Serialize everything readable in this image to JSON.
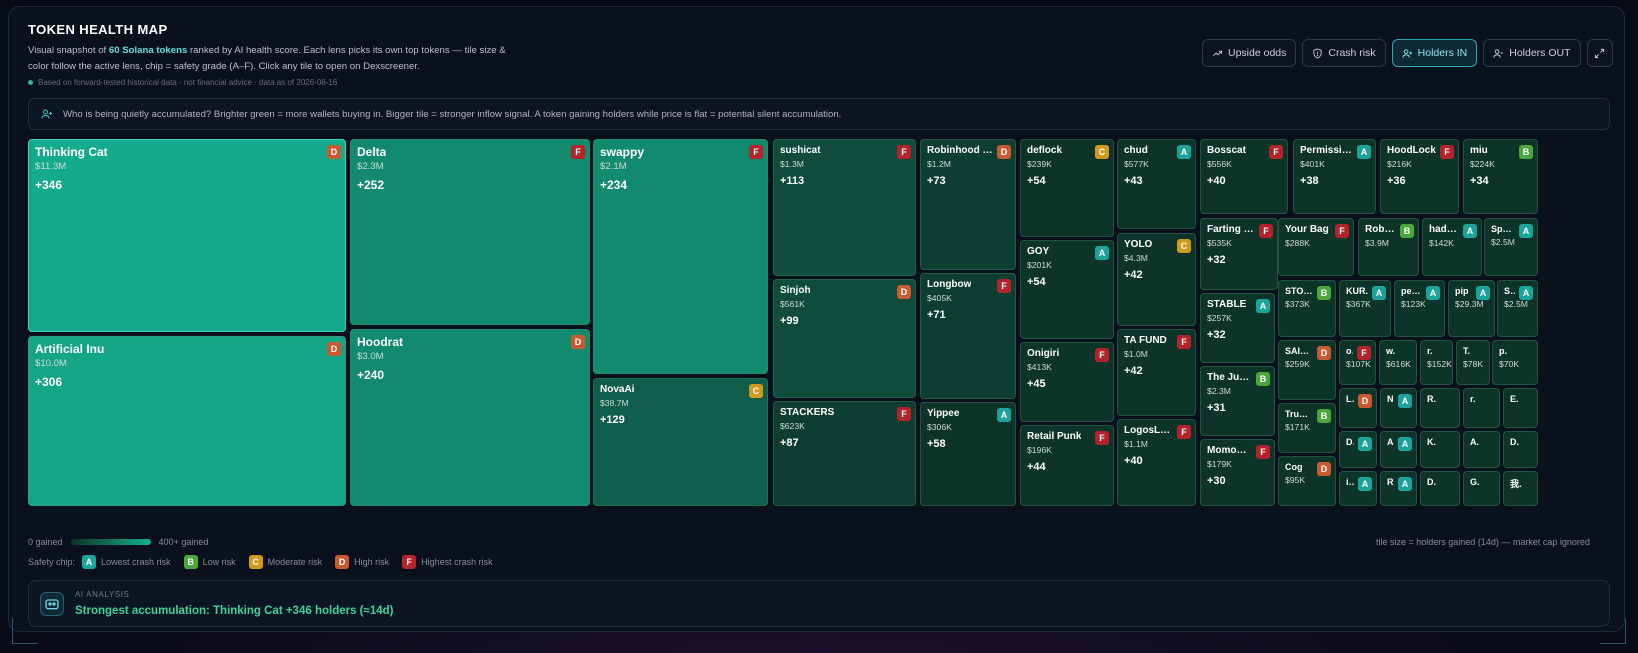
{
  "header": {
    "title": "TOKEN HEALTH MAP",
    "desc_pre": "Visual snapshot of ",
    "desc_hl": "60 Solana tokens",
    "desc_post": " ranked by AI health score. Each lens picks its own top tokens — tile size & color follow the active lens, chip = safety grade (A–F). Click any tile to open on Dexscreener.",
    "note": "Based on forward-tested historical data · not financial advice · data as of 2026-08-16"
  },
  "lenses": [
    {
      "label": "Upside odds",
      "icon": "trending-up-icon",
      "active": false
    },
    {
      "label": "Crash risk",
      "icon": "shield-icon",
      "active": false
    },
    {
      "label": "Holders IN",
      "icon": "user-plus-icon",
      "active": true
    },
    {
      "label": "Holders OUT",
      "icon": "user-minus-icon",
      "active": false
    }
  ],
  "expand_icon": "expand-icon",
  "info_text": "Who is being quietly accumulated? Brighter green = more wallets buying in. Bigger tile = stronger inflow signal. A token gaining holders while price is flat = potential silent accumulation.",
  "grade_colors": {
    "A": "#1aa49c",
    "B": "#4aa83a",
    "C": "#d29a1c",
    "D": "#c95a30",
    "F": "#b4232a"
  },
  "tiles": [
    {
      "name": "Thinking Cat",
      "mcap": "$11.3M",
      "gain": "+346",
      "grade": "D"
    },
    {
      "name": "Artificial Inu",
      "mcap": "$10.0M",
      "gain": "+306",
      "grade": "D"
    },
    {
      "name": "Delta",
      "mcap": "$2.3M",
      "gain": "+252",
      "grade": "F"
    },
    {
      "name": "Hoodrat",
      "mcap": "$3.0M",
      "gain": "+240",
      "grade": "D"
    },
    {
      "name": "swappy",
      "mcap": "$2.1M",
      "gain": "+234",
      "grade": "F"
    },
    {
      "name": "NovaAi",
      "mcap": "$38.7M",
      "gain": "+129",
      "grade": "C"
    },
    {
      "name": "sushicat",
      "mcap": "$1.3M",
      "gain": "+113",
      "grade": "F"
    },
    {
      "name": "Sinjoh",
      "mcap": "$561K",
      "gain": "+99",
      "grade": "D"
    },
    {
      "name": "STACKERS",
      "mcap": "$623K",
      "gain": "+87",
      "grade": "F"
    },
    {
      "name": "Robinhood Dog",
      "mcap": "$1.2M",
      "gain": "+73",
      "grade": "D"
    },
    {
      "name": "Longbow",
      "mcap": "$405K",
      "gain": "+71",
      "grade": "F"
    },
    {
      "name": "Yippee",
      "mcap": "$306K",
      "gain": "+58",
      "grade": "A"
    },
    {
      "name": "deflock",
      "mcap": "$239K",
      "gain": "+54",
      "grade": "C"
    },
    {
      "name": "GOY",
      "mcap": "$201K",
      "gain": "+54",
      "grade": "A"
    },
    {
      "name": "Onigiri",
      "mcap": "$413K",
      "gain": "+45",
      "grade": "F"
    },
    {
      "name": "Retail Punk",
      "mcap": "$196K",
      "gain": "+44",
      "grade": "F"
    },
    {
      "name": "chud",
      "mcap": "$577K",
      "gain": "+43",
      "grade": "A"
    },
    {
      "name": "YOLO",
      "mcap": "$4.3M",
      "gain": "+42",
      "grade": "C"
    },
    {
      "name": "TA FUND",
      "mcap": "$1.0M",
      "gain": "+42",
      "grade": "F"
    },
    {
      "name": "LogosLayer",
      "mcap": "$1.1M",
      "gain": "+40",
      "grade": "F"
    },
    {
      "name": "Bosscat",
      "mcap": "$556K",
      "gain": "+40",
      "grade": "F"
    },
    {
      "name": "Permission-L",
      "mcap": "$401K",
      "gain": "+38",
      "grade": "A"
    },
    {
      "name": "HoodLock",
      "mcap": "$216K",
      "gain": "+36",
      "grade": "F"
    },
    {
      "name": "miu",
      "mcap": "$224K",
      "gain": "+34",
      "grade": "B"
    },
    {
      "name": "Farting Un.",
      "mcap": "$535K",
      "gain": "+32",
      "grade": "F"
    },
    {
      "name": "STABLE",
      "mcap": "$257K",
      "gain": "+32",
      "grade": "A"
    },
    {
      "name": "The Jugge.",
      "mcap": "$2.3M",
      "gain": "+31",
      "grade": "B"
    },
    {
      "name": "MomoCoin",
      "mcap": "$179K",
      "gain": "+30",
      "grade": "F"
    },
    {
      "name": "Your Bag",
      "mcap": "$288K",
      "gain": "",
      "grade": "F"
    },
    {
      "name": "Robinh.",
      "mcap": "$3.9M",
      "gain": "",
      "grade": "B"
    },
    {
      "name": "had to.",
      "mcap": "$142K",
      "gain": "",
      "grade": "A"
    },
    {
      "name": "Space.",
      "mcap": "$2.5M",
      "gain": "",
      "grade": "A"
    },
    {
      "name": "STONK",
      "mcap": "$373K",
      "gain": "",
      "grade": "B"
    },
    {
      "name": "KUR.",
      "mcap": "$367K",
      "gain": "",
      "grade": "A"
    },
    {
      "name": "pepe.",
      "mcap": "$123K",
      "gain": "",
      "grade": "A"
    },
    {
      "name": "pip",
      "mcap": "$29.3M",
      "gain": "",
      "grade": "A"
    },
    {
      "name": "SP.",
      "mcap": "$2.5M",
      "gain": "",
      "grade": "A"
    },
    {
      "name": "SAITA.",
      "mcap": "$259K",
      "gain": "",
      "grade": "D"
    },
    {
      "name": "Trump.",
      "mcap": "$171K",
      "gain": "",
      "grade": "B"
    },
    {
      "name": "Cog",
      "mcap": "$95K",
      "gain": "",
      "grade": "D"
    },
    {
      "name": "omo",
      "mcap": "$107K",
      "gain": "",
      "grade": "F"
    },
    {
      "name": "w.",
      "mcap": "$616K",
      "gain": "",
      "grade": ""
    },
    {
      "name": "r.",
      "mcap": "$152K",
      "gain": "",
      "grade": ""
    },
    {
      "name": "T.",
      "mcap": "$78K",
      "gain": "",
      "grade": ""
    },
    {
      "name": "p.",
      "mcap": "$70K",
      "gain": "",
      "grade": ""
    },
    {
      "name": "Loon",
      "mcap": "",
      "gain": "",
      "grade": "D"
    },
    {
      "name": "N.",
      "mcap": "",
      "gain": "",
      "grade": "A"
    },
    {
      "name": "R.",
      "mcap": "",
      "gain": "",
      "grade": ""
    },
    {
      "name": "r.",
      "mcap": "",
      "gain": "",
      "grade": ""
    },
    {
      "name": "E.",
      "mcap": "",
      "gain": "",
      "grade": ""
    },
    {
      "name": "Dog",
      "mcap": "",
      "gain": "",
      "grade": "A"
    },
    {
      "name": "A.",
      "mcap": "",
      "gain": "",
      "grade": "A"
    },
    {
      "name": "K.",
      "mcap": "",
      "gain": "",
      "grade": ""
    },
    {
      "name": "A.",
      "mcap": "",
      "gain": "",
      "grade": ""
    },
    {
      "name": "D.",
      "mcap": "",
      "gain": "",
      "grade": ""
    },
    {
      "name": "idra.",
      "mcap": "",
      "gain": "",
      "grade": "A"
    },
    {
      "name": "R.",
      "mcap": "",
      "gain": "",
      "grade": "A"
    },
    {
      "name": "D.",
      "mcap": "",
      "gain": "",
      "grade": ""
    },
    {
      "name": "G.",
      "mcap": "",
      "gain": "",
      "grade": ""
    },
    {
      "name": "我.",
      "mcap": "",
      "gain": "",
      "grade": ""
    }
  ],
  "legend": {
    "min": "0 gained",
    "max": "400+ gained",
    "size_note": "tile size = holders gained (14d) — market cap ignored"
  },
  "safety": {
    "label": "Safety chip:",
    "items": [
      {
        "grade": "A",
        "label": "Lowest crash risk"
      },
      {
        "grade": "B",
        "label": "Low risk"
      },
      {
        "grade": "C",
        "label": "Moderate risk"
      },
      {
        "grade": "D",
        "label": "High risk"
      },
      {
        "grade": "F",
        "label": "Highest crash risk"
      }
    ]
  },
  "ai": {
    "label": "AI ANALYSIS",
    "text": "Strongest accumulation: Thinking Cat +346 holders (≈14d)"
  }
}
